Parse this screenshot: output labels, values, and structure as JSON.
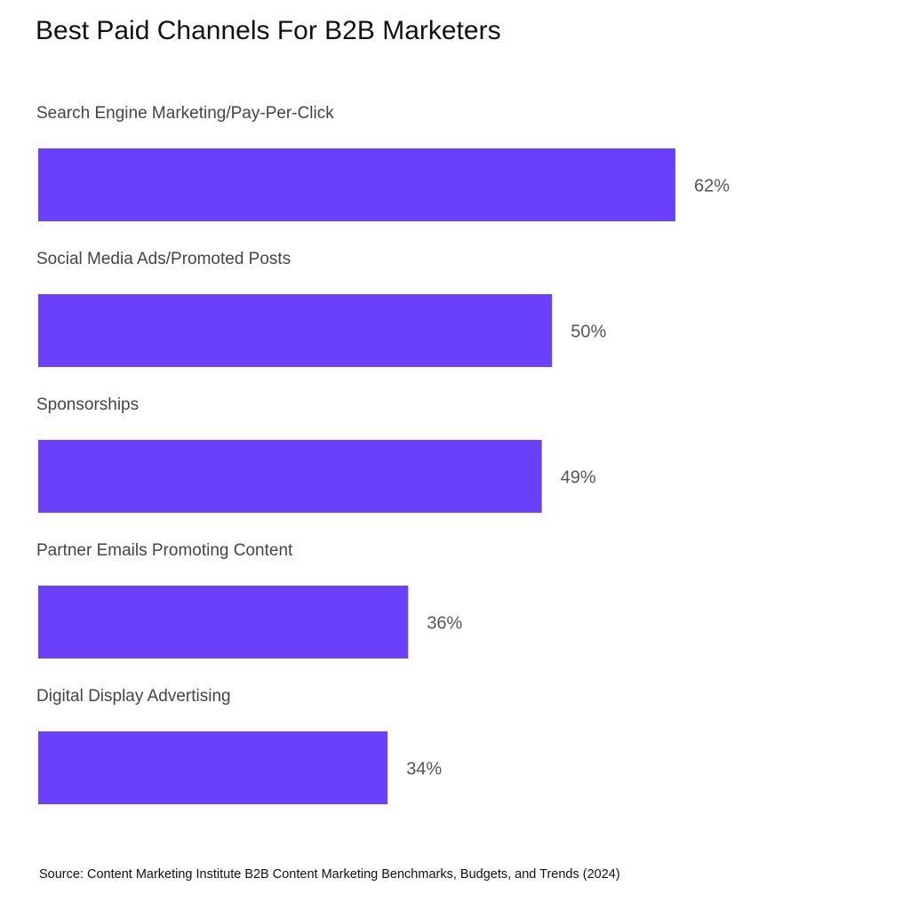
{
  "chart_data": {
    "type": "hbar",
    "title": "Best Paid Channels For B2B Marketers",
    "categories": [
      "Search Engine Marketing/Pay-Per-Click",
      "Social Media Ads/Promoted Posts",
      "Sponsorships",
      "Partner Emails Promoting Content",
      "Digital Display Advertising"
    ],
    "values": [
      62,
      50,
      49,
      36,
      34
    ],
    "value_labels": [
      "62%",
      "50%",
      "49%",
      "36%",
      "34%"
    ],
    "color": "#6a40fa",
    "source": "Source: Content Marketing Institute B2B Content Marketing Benchmarks, Budgets, and Trends (2024)"
  }
}
